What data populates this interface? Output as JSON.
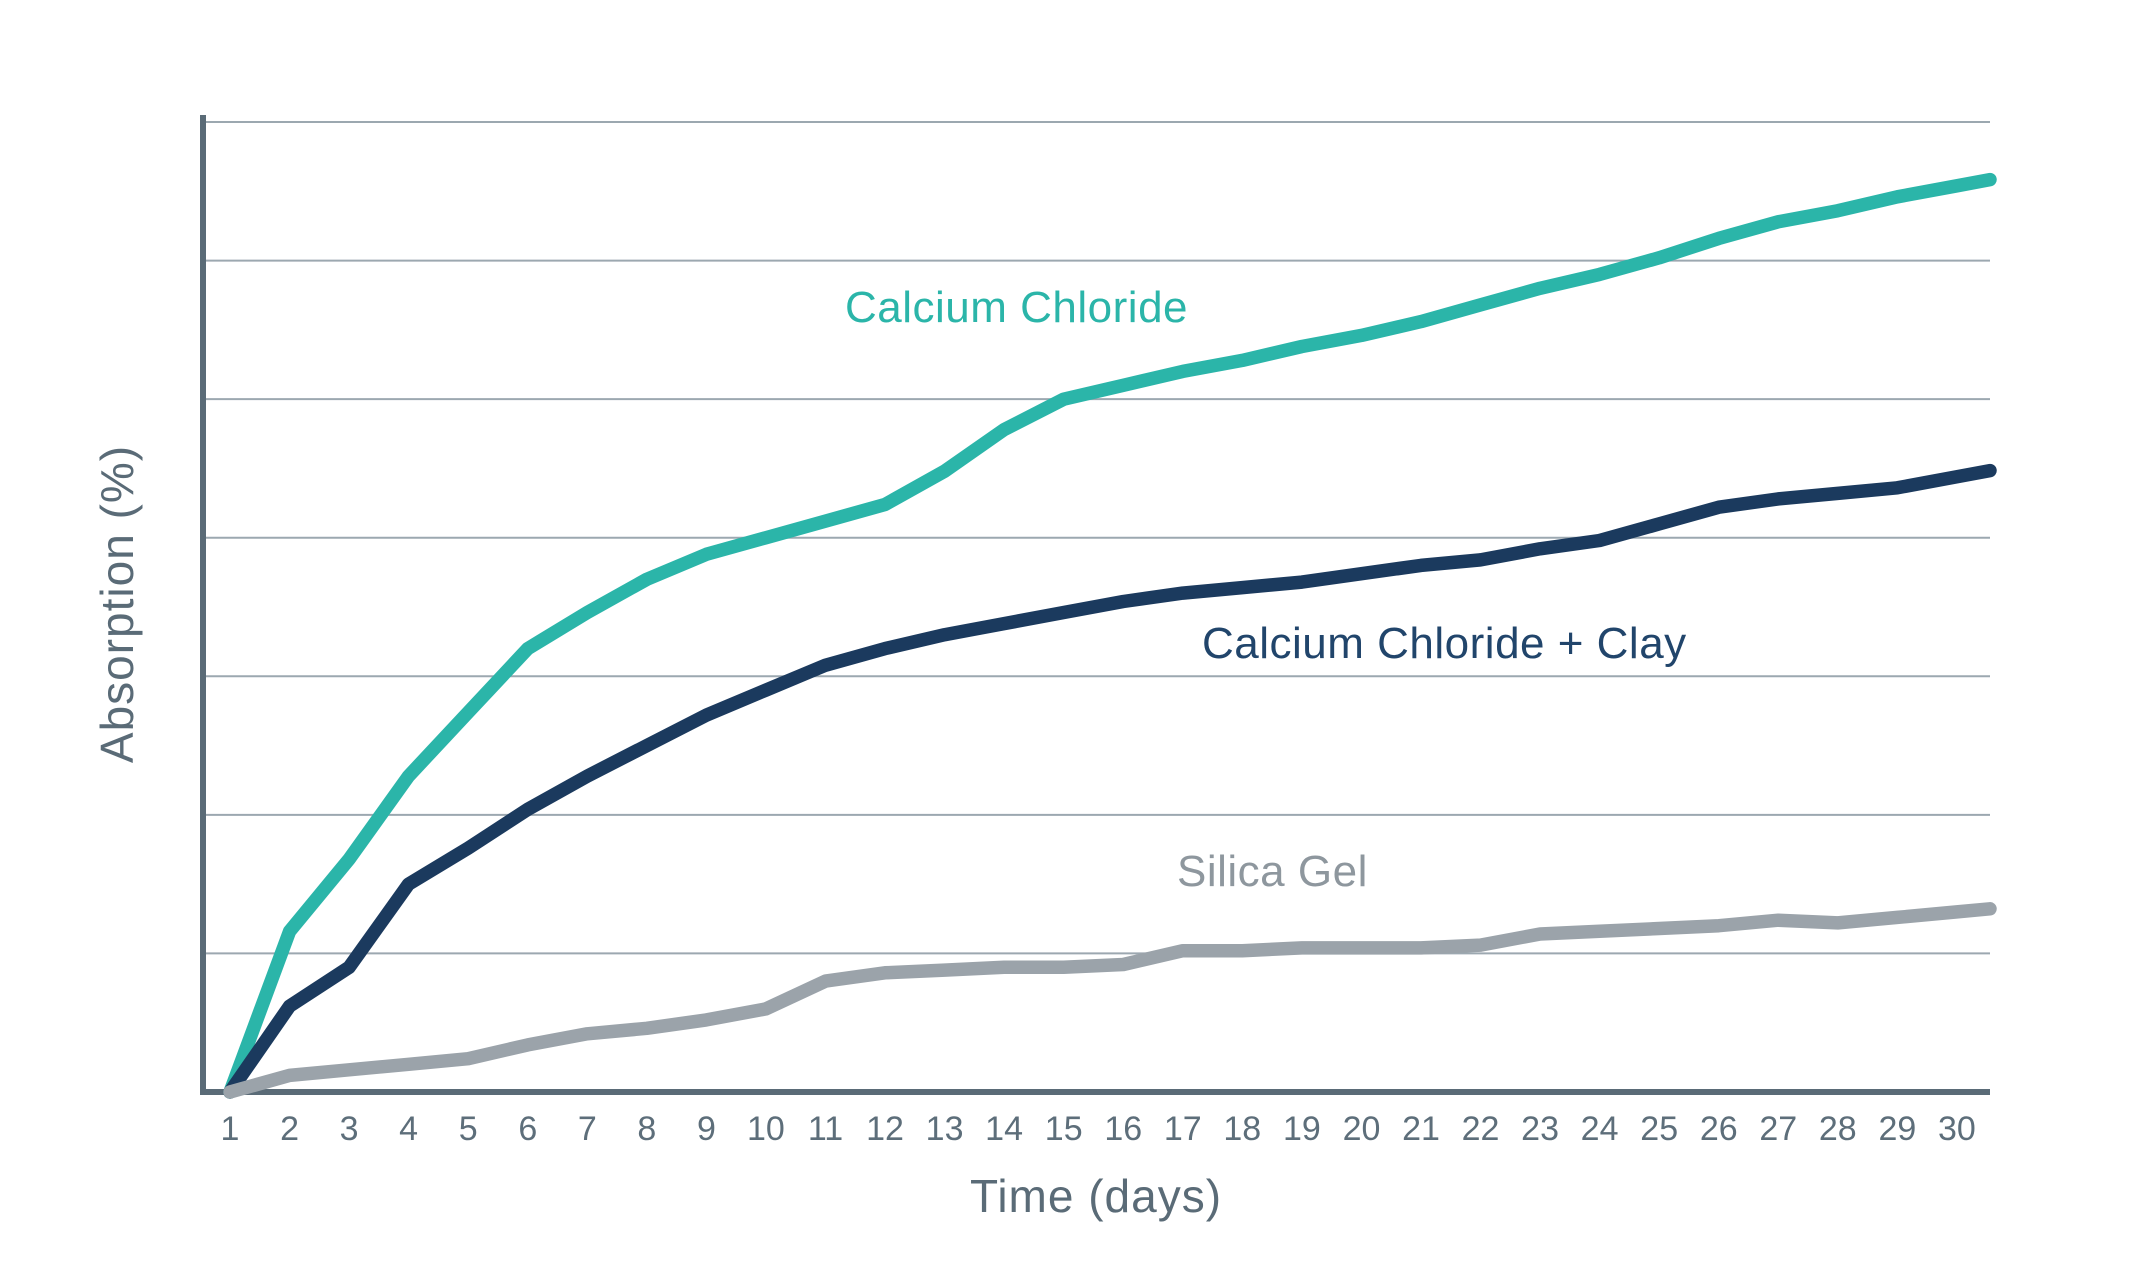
{
  "chart_data": {
    "type": "line",
    "title": "",
    "xlabel": "Time (days)",
    "ylabel": "Absorption (%)",
    "x": [
      1,
      2,
      3,
      4,
      5,
      6,
      7,
      8,
      9,
      10,
      11,
      12,
      13,
      14,
      15,
      16,
      17,
      18,
      19,
      20,
      21,
      22,
      23,
      24,
      25,
      26,
      27,
      28,
      29,
      30
    ],
    "xlim": [
      1,
      30.5
    ],
    "ylim": [
      0,
      35
    ],
    "y_gridline_step": 5,
    "y_tick_labels_shown": false,
    "grid": "horizontal",
    "legend": "inline-labels",
    "background_color": "#ffffff",
    "axis_color": "#5a6b77",
    "gridline_color": "#8b99a3",
    "tick_label_color": "#5d6e7a",
    "series": [
      {
        "name": "Calcium Chloride",
        "color": "#2bb5a9",
        "label_color": "#2bb5a9",
        "values": [
          0,
          5.8,
          8.4,
          11.4,
          13.7,
          16.0,
          17.3,
          18.5,
          19.4,
          20.0,
          20.6,
          21.2,
          22.4,
          23.9,
          25.0,
          25.5,
          26.0,
          26.4,
          26.9,
          27.3,
          27.8,
          28.4,
          29.0,
          29.5,
          30.1,
          30.8,
          31.4,
          31.8,
          32.3,
          32.7
        ]
      },
      {
        "name": "Calcium Chloride + Clay",
        "color": "#1b3a5e",
        "label_color": "#21456b",
        "values": [
          0,
          3.1,
          4.5,
          7.5,
          8.8,
          10.2,
          11.4,
          12.5,
          13.6,
          14.5,
          15.4,
          16.0,
          16.5,
          16.9,
          17.3,
          17.7,
          18.0,
          18.2,
          18.4,
          18.7,
          19.0,
          19.2,
          19.6,
          19.9,
          20.5,
          21.1,
          21.4,
          21.6,
          21.8,
          22.2
        ]
      },
      {
        "name": "Silica Gel",
        "color": "#9ba3aa",
        "label_color": "#8e979e",
        "values": [
          0,
          0.6,
          0.8,
          1.0,
          1.2,
          1.7,
          2.1,
          2.3,
          2.6,
          3.0,
          4.0,
          4.3,
          4.4,
          4.5,
          4.5,
          4.6,
          5.1,
          5.1,
          5.2,
          5.2,
          5.2,
          5.3,
          5.7,
          5.8,
          5.9,
          6.0,
          6.2,
          6.1,
          6.3,
          6.5
        ]
      }
    ]
  }
}
